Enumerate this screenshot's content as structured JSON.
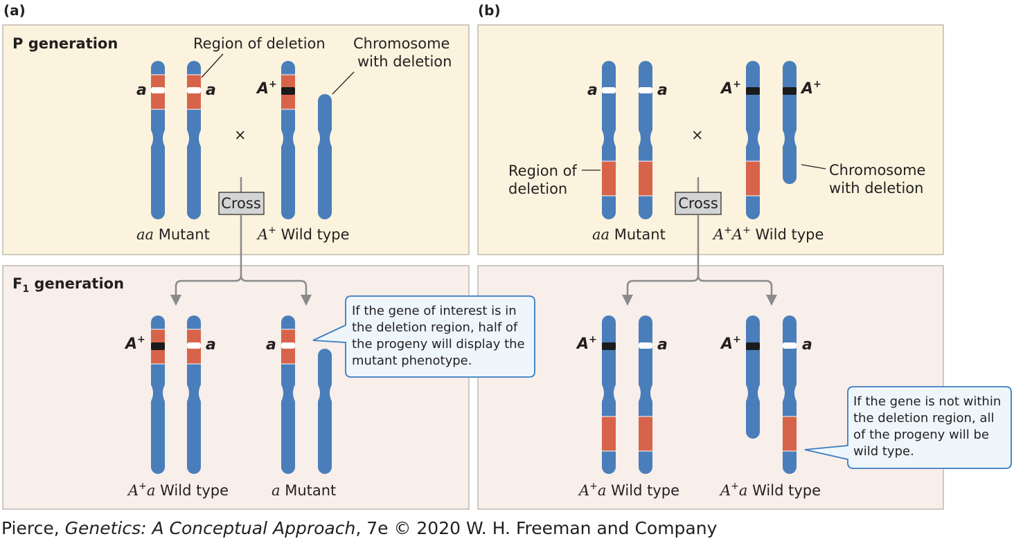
{
  "panel_a": {
    "label": "(a)",
    "p_title": "P generation",
    "deletion_region_label": "Region of deletion",
    "chromosome_deletion_label": [
      "Chromosome",
      "with deletion"
    ],
    "cross_symbol": "×",
    "cross_button": "Cross",
    "allele_a": "a",
    "allele_A": "A",
    "plus": "+",
    "p_left_genotype": "aa",
    "p_left_text": "Mutant",
    "p_right_genotype": "A",
    "p_right_text": "Wild type",
    "f1_title_main": "F",
    "f1_title_sub": "1",
    "f1_title_rest": "generation",
    "f1_left_genotype": "A",
    "f1_left_genotype_tail": "a",
    "f1_left_text": "Wild type",
    "f1_right_genotype": "a",
    "f1_right_text": "Mutant",
    "callout": [
      "If the gene of interest is in",
      "the deletion region, half of",
      "the progeny will display the",
      "mutant phenotype."
    ]
  },
  "panel_b": {
    "label": "(b)",
    "deletion_region_label": [
      "Region of",
      "deletion"
    ],
    "chromosome_deletion_label": [
      "Chromosome",
      "with deletion"
    ],
    "cross_symbol": "×",
    "cross_button": "Cross",
    "p_left_genotype": "aa",
    "p_left_text": "Mutant",
    "p_right_genotype": "A",
    "p_right_genotype_tail": "A",
    "p_right_text": "Wild type",
    "f1_left_genotype": "A",
    "f1_left_genotype_tail": "a",
    "f1_left_text": "Wild type",
    "f1_right_genotype": "A",
    "f1_right_genotype_tail": "a",
    "f1_right_text": "Wild type",
    "callout": [
      "If the gene is not within",
      "the deletion region, all",
      "of the progeny will be",
      "wild type."
    ]
  },
  "footer": {
    "author": "Pierce, ",
    "book_title": "Genetics: A Conceptual Approach",
    "rest": ", 7e © 2020 W. H. Freeman and Company"
  },
  "colors": {
    "chromosome": "#4a7ebb",
    "deletion_region": "#d7644a",
    "p_background": "#fbf3dd",
    "f1_background": "#f8eeea",
    "callout_border": "#3a7cc0",
    "callout_fill": "#eef6fc",
    "cross_box": "#d3d4d6"
  }
}
